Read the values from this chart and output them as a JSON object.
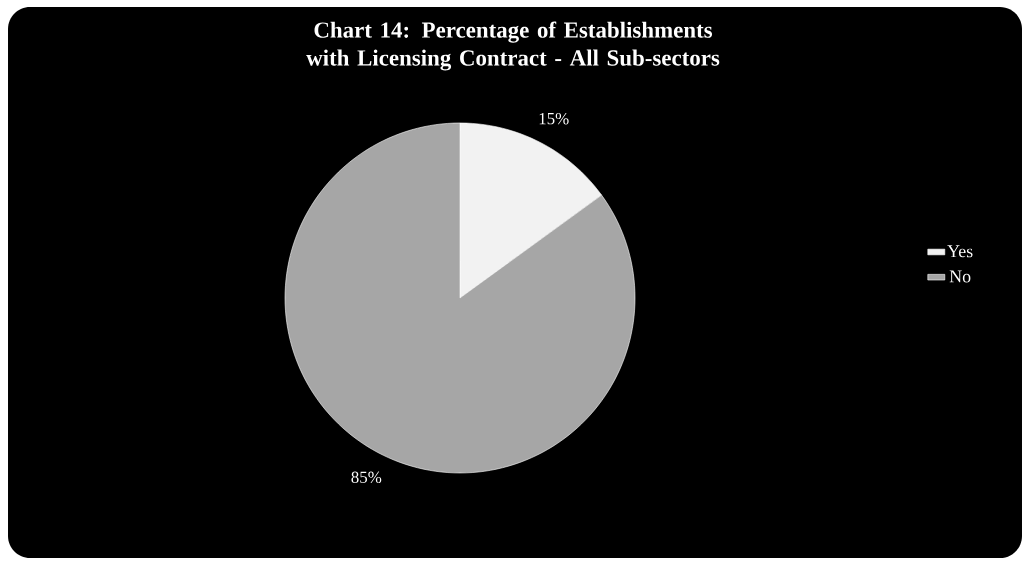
{
  "chart_data": {
    "type": "pie",
    "title": "Chart 14: Percentage of Establishments with Licensing Contract - All Sub-sectors",
    "categories": [
      "Yes",
      "No"
    ],
    "values": [
      15,
      85
    ],
    "colors": [
      "#f2f2f2",
      "#a6a6a6"
    ],
    "value_labels": [
      "15%",
      "85%"
    ],
    "legend": "right"
  }
}
